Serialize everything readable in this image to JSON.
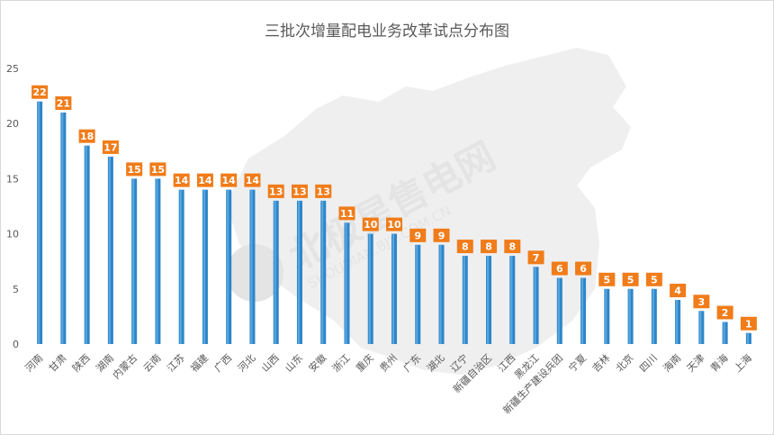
{
  "chart_data": {
    "type": "bar",
    "title": "三批次增量配电业务改革试点分布图",
    "xlabel": "",
    "ylabel": "",
    "ylim": [
      0,
      25
    ],
    "yticks": [
      0,
      5,
      10,
      15,
      20,
      25
    ],
    "grid": false,
    "legend": "none",
    "categories": [
      "河南",
      "甘肃",
      "陕西",
      "湖南",
      "内蒙古",
      "云南",
      "江苏",
      "福建",
      "广西",
      "河北",
      "山西",
      "山东",
      "安徽",
      "浙江",
      "重庆",
      "贵州",
      "广东",
      "湖北",
      "辽宁",
      "新疆自治区",
      "江西",
      "黑龙江",
      "新疆生产建设兵团",
      "宁夏",
      "吉林",
      "北京",
      "四川",
      "海南",
      "天津",
      "青海",
      "上海"
    ],
    "values": [
      22,
      21,
      18,
      17,
      15,
      15,
      14,
      14,
      14,
      14,
      13,
      13,
      13,
      11,
      10,
      10,
      9,
      9,
      8,
      8,
      8,
      7,
      6,
      6,
      5,
      5,
      5,
      4,
      3,
      2,
      1
    ],
    "colors": {
      "bar": "#2e86c9",
      "bar_highlight": "#5aa8e0",
      "label_bg": "#f07c1a",
      "label_text": "#ffffff",
      "axis_text": "#595959",
      "map": "#efefef",
      "watermark": "#e4e4e4"
    }
  },
  "watermark": {
    "cn": "北极星售电网",
    "en": "SHOUDIAN.BJX.COM.CN"
  }
}
